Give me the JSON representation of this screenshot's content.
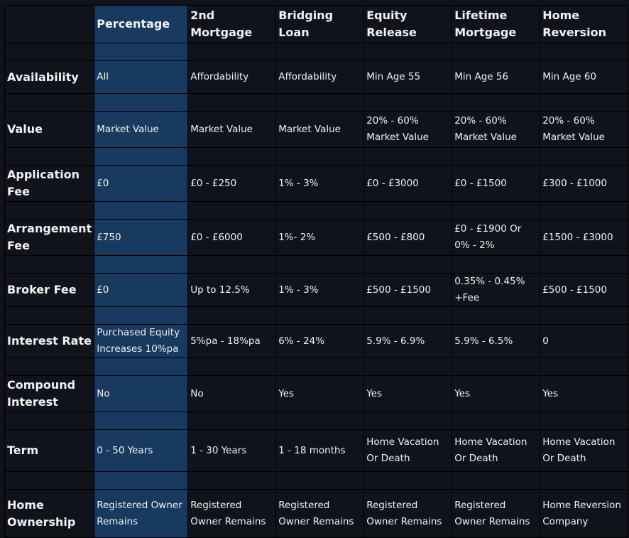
{
  "columns": [
    "",
    "Percentage",
    "2nd Mortgage",
    "Bridging Loan",
    "Equity Release",
    "Lifetime Mortgage",
    "Home Reversion"
  ],
  "rows": [
    {
      "label": "Availability",
      "cells": [
        "All",
        "Affordability",
        "Affordability",
        "Min Age 55",
        "Min Age 56",
        "Min Age 60"
      ]
    },
    {
      "label": "Value",
      "cells": [
        "Market Value",
        "Market Value",
        "Market Value",
        "20% - 60% Market Value",
        "20% - 60% Market Value",
        "20% - 60% Market Value"
      ]
    },
    {
      "label": "Application Fee",
      "cells": [
        "£0",
        "£0 - £250",
        "1% - 3%",
        "£0 - £3000",
        "£0 - £1500",
        "£300 - £1000"
      ]
    },
    {
      "label": "Arrangement Fee",
      "cells": [
        "£750",
        "£0 - £6000",
        "1%-  2%",
        "£500 - £800",
        "£0 - £1900 Or 0% - 2%",
        "£1500 - £3000"
      ]
    },
    {
      "label": "Broker Fee",
      "cells": [
        "£0",
        "Up to 12.5%",
        "1% - 3%",
        "£500 - £1500",
        "0.35% - 0.45% +Fee",
        "£500 - £1500"
      ]
    },
    {
      "label": "Interest Rate",
      "cells": [
        "Purchased Equity Increases 10%pa",
        "5%pa - 18%pa",
        "6% - 24%",
        "5.9% - 6.9%",
        "5.9% -  6.5%",
        "0"
      ]
    },
    {
      "label": "Compound Interest",
      "cells": [
        "No",
        "No",
        "Yes",
        "Yes",
        "Yes",
        "Yes"
      ]
    },
    {
      "label": "Term",
      "cells": [
        "0 - 50 Years",
        "1 - 30 Years",
        "1 - 18 months",
        "Home Vacation Or Death",
        "Home Vacation Or Death",
        "Home Vacation Or Death"
      ]
    },
    {
      "label": "Home Ownership",
      "cells": [
        "Registered Owner Remains",
        "Registered Owner Remains",
        "Registered Owner Remains",
        "Registered Owner Remains",
        "Registered Owner Remains",
        "Home Reversion Company"
      ]
    }
  ],
  "colors": {
    "highlight": "#173a5e",
    "background": "#10131b"
  }
}
